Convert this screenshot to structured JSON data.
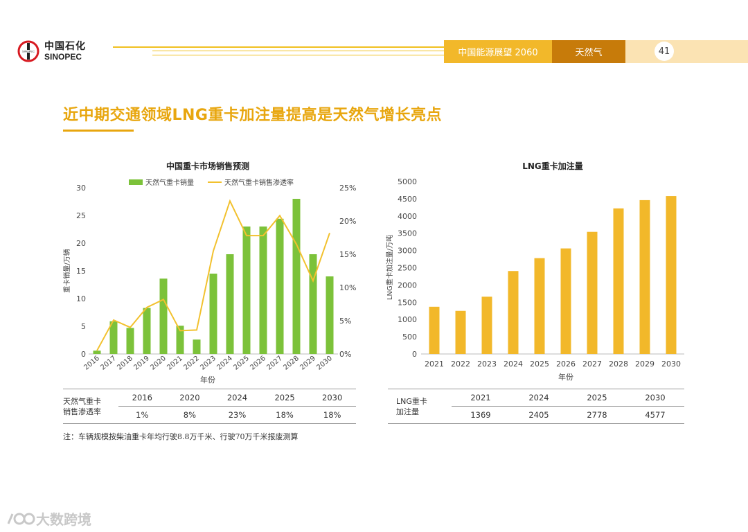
{
  "logo": {
    "cn": "中国石化",
    "en": "SINOPEC",
    "mark_text": "SINOPEC"
  },
  "header": {
    "title": "中国能源展望 2060",
    "tab": "天然气",
    "page_number": "41"
  },
  "main_title": "近中期交通领域LNG重卡加注量提高是天然气增长亮点",
  "note": "注：车辆规模按柴油重卡年均行驶8.8万千米、行驶70万千米报废测算",
  "watermark": "大数跨境",
  "colors": {
    "accent": "#e8a60e",
    "bar_green": "#7cc23a",
    "line_yellow": "#f2c12e",
    "bar_yellow": "#f2b82a"
  },
  "chart_data": [
    {
      "type": "bar",
      "title": "中国重卡市场销售预测",
      "xlabel": "年份",
      "ylabel": "重卡销量/万辆",
      "y2label": "",
      "categories": [
        "2016",
        "2017",
        "2018",
        "2019",
        "2020",
        "2021",
        "2022",
        "2023",
        "2024",
        "2025",
        "2026",
        "2027",
        "2028",
        "2029",
        "2030"
      ],
      "ylim": [
        0,
        30
      ],
      "yticks": [
        "0",
        "5",
        "10",
        "15",
        "20",
        "25",
        "30"
      ],
      "y2lim": [
        0,
        25
      ],
      "y2ticks": [
        "0%",
        "5%",
        "10%",
        "15%",
        "20%",
        "25%"
      ],
      "series": [
        {
          "name": "天然气重卡销量",
          "kind": "bar",
          "axis": "left",
          "values": [
            0.6,
            5.9,
            4.7,
            8.3,
            13.6,
            5.1,
            2.6,
            14.5,
            18.0,
            23.0,
            23.0,
            24.4,
            28.0,
            18.0,
            14.0
          ]
        },
        {
          "name": "天然气重卡销售渗透率",
          "kind": "line",
          "axis": "right",
          "values": [
            0.5,
            5.1,
            4.0,
            7.0,
            8.2,
            3.5,
            3.6,
            15.5,
            23.0,
            17.8,
            17.8,
            20.8,
            16.5,
            11.0,
            18.2
          ]
        }
      ],
      "legend": "top"
    },
    {
      "type": "bar",
      "title": "LNG重卡加注量",
      "xlabel": "年份",
      "ylabel": "LNG重卡加注量/万吨",
      "categories": [
        "2021",
        "2022",
        "2023",
        "2024",
        "2025",
        "2026",
        "2027",
        "2028",
        "2029",
        "2030"
      ],
      "ylim": [
        0,
        5000
      ],
      "yticks": [
        "0",
        "500",
        "1000",
        "1500",
        "2000",
        "2500",
        "3000",
        "3500",
        "4000",
        "4500",
        "5000"
      ],
      "series": [
        {
          "name": "LNG重卡加注量",
          "values": [
            1369,
            1250,
            1660,
            2405,
            2778,
            3060,
            3540,
            4220,
            4460,
            4577
          ]
        }
      ]
    }
  ],
  "table_left": {
    "row_head_1": "天然气重卡",
    "row_head_2": "销售渗透率",
    "years": [
      "2016",
      "2020",
      "2024",
      "2025",
      "2030"
    ],
    "values": [
      "1%",
      "8%",
      "23%",
      "18%",
      "18%"
    ]
  },
  "table_right": {
    "row_head_1": "LNG重卡",
    "row_head_2": "加注量",
    "years": [
      "2021",
      "2024",
      "2025",
      "2030"
    ],
    "values": [
      "1369",
      "2405",
      "2778",
      "4577"
    ]
  }
}
